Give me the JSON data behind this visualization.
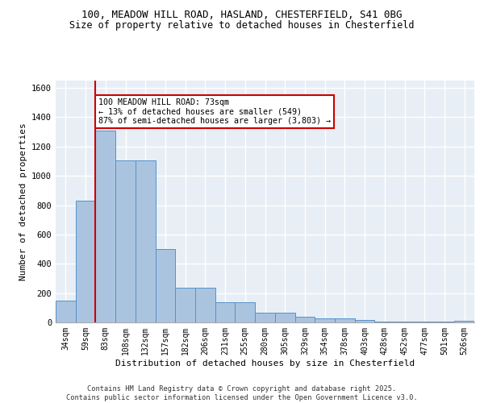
{
  "title_line1": "100, MEADOW HILL ROAD, HASLAND, CHESTERFIELD, S41 0BG",
  "title_line2": "Size of property relative to detached houses in Chesterfield",
  "xlabel": "Distribution of detached houses by size in Chesterfield",
  "ylabel": "Number of detached properties",
  "footer": "Contains HM Land Registry data © Crown copyright and database right 2025.\nContains public sector information licensed under the Open Government Licence v3.0.",
  "categories": [
    "34sqm",
    "59sqm",
    "83sqm",
    "108sqm",
    "132sqm",
    "157sqm",
    "182sqm",
    "206sqm",
    "231sqm",
    "255sqm",
    "280sqm",
    "305sqm",
    "329sqm",
    "354sqm",
    "378sqm",
    "403sqm",
    "428sqm",
    "452sqm",
    "477sqm",
    "501sqm",
    "526sqm"
  ],
  "values": [
    150,
    830,
    1310,
    1105,
    1105,
    500,
    235,
    235,
    135,
    135,
    65,
    65,
    38,
    25,
    25,
    15,
    5,
    5,
    5,
    5,
    10
  ],
  "bar_color": "#aac4e0",
  "bar_edge_color": "#5591c8",
  "background_color": "#e8eef5",
  "grid_color": "#ffffff",
  "vline_x": 1.5,
  "vline_color": "#cc0000",
  "annotation_text": "100 MEADOW HILL ROAD: 73sqm\n← 13% of detached houses are smaller (549)\n87% of semi-detached houses are larger (3,803) →",
  "annotation_box_color": "#cc0000",
  "ylim": [
    0,
    1650
  ],
  "yticks": [
    0,
    200,
    400,
    600,
    800,
    1000,
    1200,
    1400,
    1600
  ]
}
